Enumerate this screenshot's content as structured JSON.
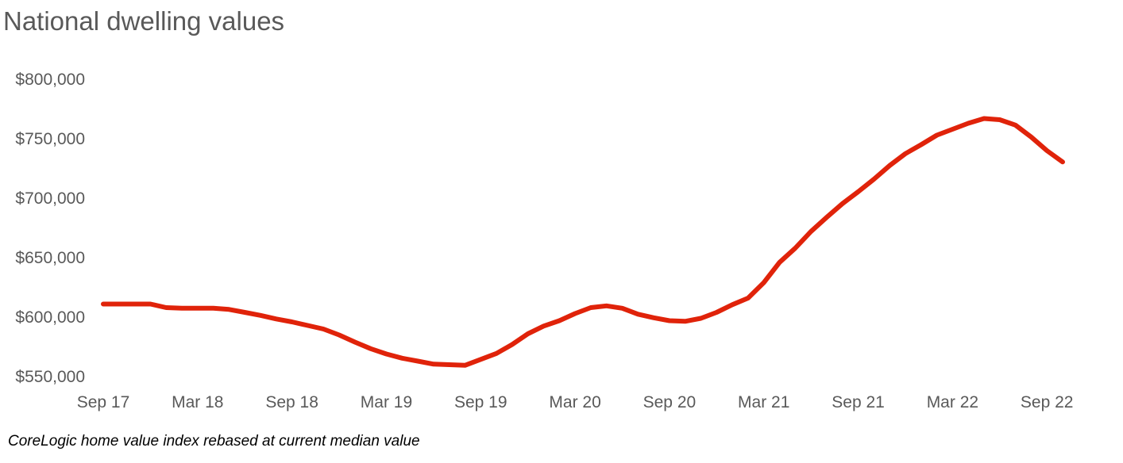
{
  "title": "National dwelling values",
  "caption": "CoreLogic home value index rebased at current median value",
  "chart_data": {
    "type": "line",
    "title": "National dwelling values",
    "xlabel": "",
    "ylabel": "",
    "ylim": [
      550000,
      800000
    ],
    "yticks": [
      550000,
      600000,
      650000,
      700000,
      750000,
      800000
    ],
    "ytick_labels": [
      "$550,000",
      "$600,000",
      "$650,000",
      "$700,000",
      "$750,000",
      "$800,000"
    ],
    "x_tick_labels": [
      "Sep 17",
      "Mar 18",
      "Sep 18",
      "Mar 19",
      "Sep 19",
      "Mar 20",
      "Sep 20",
      "Mar 21",
      "Sep 21",
      "Mar 22",
      "Sep 22"
    ],
    "x_tick_positions": [
      0,
      6,
      12,
      18,
      24,
      30,
      36,
      42,
      48,
      54,
      60
    ],
    "grid": false,
    "legend": "none",
    "line_color": "#E0230A",
    "series": [
      {
        "values": [
          611000,
          611000,
          611000,
          611000,
          608000,
          607500,
          607500,
          607500,
          606500,
          604000,
          601500,
          598500,
          596000,
          593000,
          590000,
          585000,
          579000,
          573500,
          569000,
          565500,
          563000,
          560500,
          560000,
          559500,
          564500,
          569500,
          577000,
          586000,
          592500,
          597000,
          603000,
          608000,
          609500,
          607500,
          602500,
          599500,
          597000,
          596500,
          599000,
          604000,
          610500,
          616000,
          629000,
          646000,
          658000,
          672000,
          684000,
          695500,
          705500,
          716000,
          727500,
          737500,
          745000,
          753000,
          758000,
          763000,
          767000,
          766000,
          761500,
          751500,
          740000,
          730500
        ]
      }
    ]
  }
}
